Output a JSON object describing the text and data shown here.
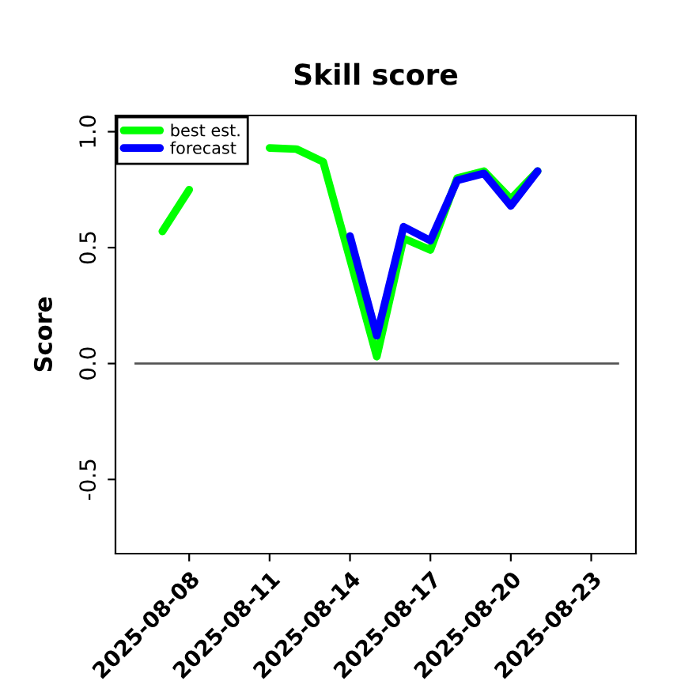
{
  "chart_data": {
    "type": "line",
    "title": "Skill score",
    "ylabel": "Score",
    "x": [
      "2025-08-07",
      "2025-08-08",
      "2025-08-09",
      "2025-08-10",
      "2025-08-11",
      "2025-08-12",
      "2025-08-13",
      "2025-08-14",
      "2025-08-15",
      "2025-08-16",
      "2025-08-17",
      "2025-08-18",
      "2025-08-19",
      "2025-08-20",
      "2025-08-21"
    ],
    "series": [
      {
        "name": "best est.",
        "color": "#00ff00",
        "values": [
          0.57,
          0.75,
          null,
          null,
          0.93,
          0.925,
          0.87,
          0.45,
          0.03,
          0.54,
          0.49,
          0.8,
          0.83,
          0.71,
          0.83
        ]
      },
      {
        "name": "forecast",
        "color": "#0000ff",
        "values": [
          null,
          null,
          null,
          null,
          null,
          null,
          null,
          0.55,
          0.12,
          0.59,
          0.53,
          0.79,
          0.82,
          0.68,
          0.83
        ]
      }
    ],
    "xlim": [
      "2025-08-05T06:00",
      "2025-08-24T16:00"
    ],
    "xticks": [
      "2025-08-08",
      "2025-08-11",
      "2025-08-14",
      "2025-08-17",
      "2025-08-20",
      "2025-08-23"
    ],
    "ylim": [
      -0.82,
      1.07
    ],
    "yticks": [
      -0.5,
      {
        "value": 0,
        "label": "0.0"
      },
      0.5,
      {
        "value": 1,
        "label": "1.0"
      }
    ],
    "ref_lines": [
      {
        "axis": "y",
        "value": 0,
        "color": "#555555"
      }
    ],
    "legend": "top left",
    "grid": false,
    "marker": "none",
    "line_style": "solid"
  }
}
